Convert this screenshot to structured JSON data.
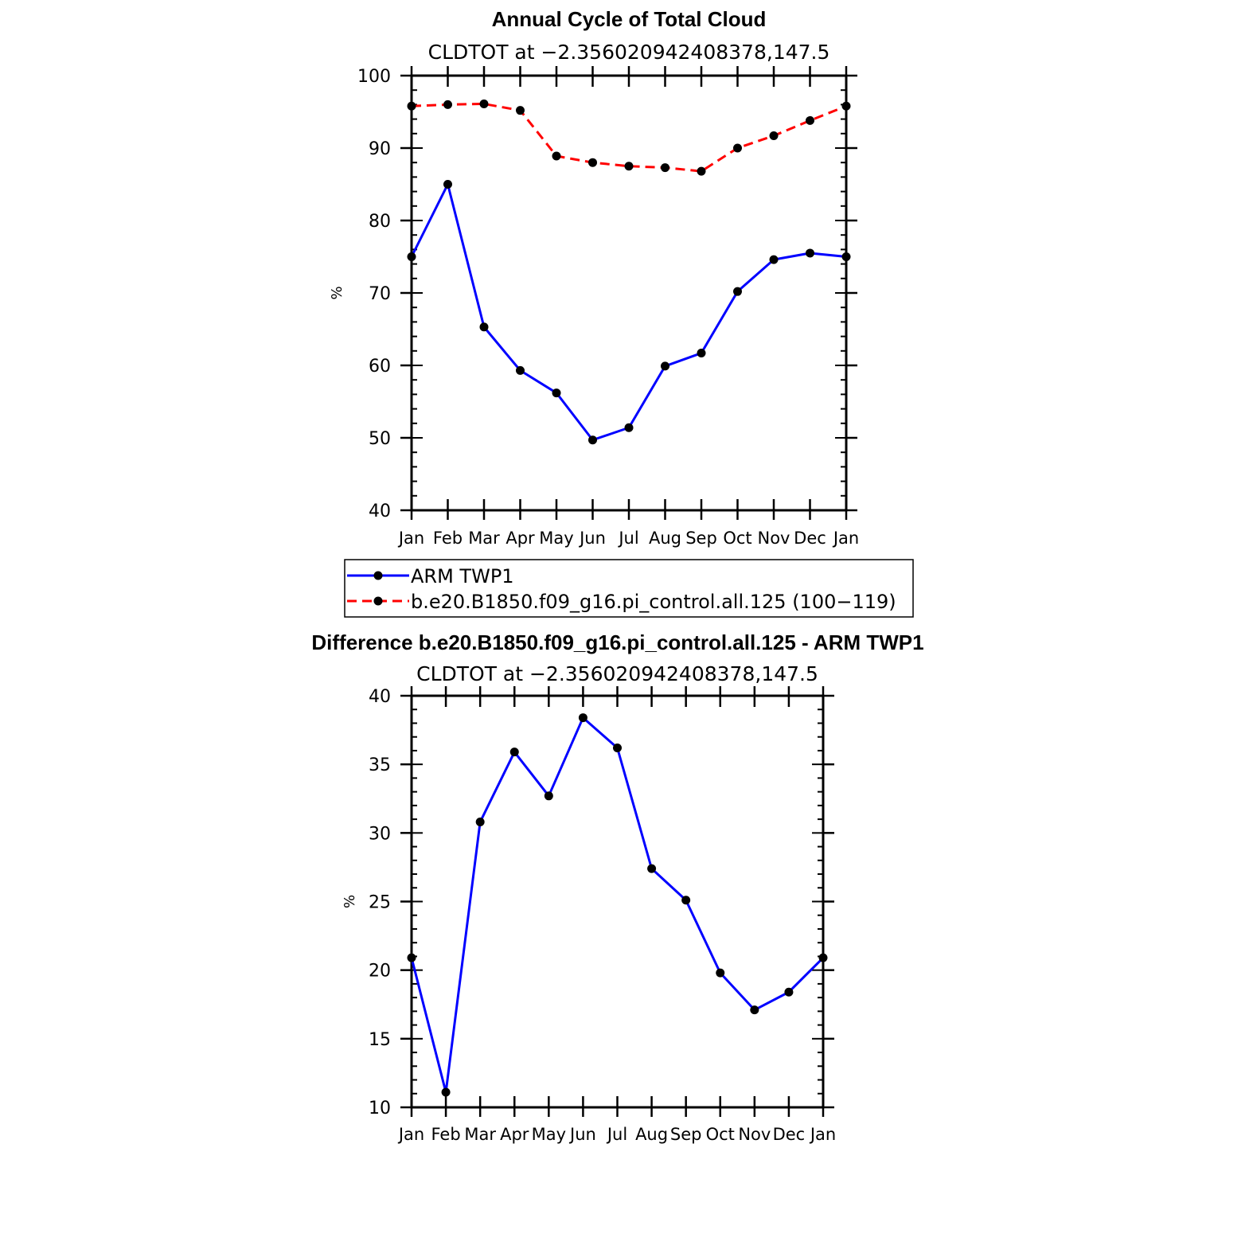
{
  "chart_data": [
    {
      "type": "line",
      "title": "Annual Cycle of Total Cloud",
      "subtitle": "CLDTOT at −2.356020942408378,147.5",
      "ylabel": "%",
      "xlabel": "",
      "categories": [
        "Jan",
        "Feb",
        "Mar",
        "Apr",
        "May",
        "Jun",
        "Jul",
        "Aug",
        "Sep",
        "Oct",
        "Nov",
        "Dec",
        "Jan"
      ],
      "ylim": [
        40,
        100
      ],
      "yticks": [
        "40",
        "50",
        "60",
        "70",
        "80",
        "90",
        "100"
      ],
      "series": [
        {
          "name": "ARM TWP1",
          "color": "#0000ff",
          "dash": "solid",
          "values": [
            75.0,
            85.0,
            65.3,
            59.3,
            56.2,
            49.7,
            51.4,
            59.9,
            61.7,
            70.2,
            74.6,
            75.5,
            75.0
          ]
        },
        {
          "name": "b.e20.B1850.f09_g16.pi_control.all.125 (100−119)",
          "color": "#ff0000",
          "dash": "dashed",
          "values": [
            95.8,
            96.0,
            96.1,
            95.2,
            88.9,
            88.0,
            87.5,
            87.3,
            86.8,
            90.0,
            91.7,
            93.8,
            95.8
          ]
        }
      ],
      "legend_position": "below"
    },
    {
      "type": "line",
      "title": "Difference b.e20.B1850.f09_g16.pi_control.all.125 - ARM TWP1",
      "subtitle": "CLDTOT at −2.356020942408378,147.5",
      "ylabel": "%",
      "xlabel": "",
      "categories": [
        "Jan",
        "Feb",
        "Mar",
        "Apr",
        "May",
        "Jun",
        "Jul",
        "Aug",
        "Sep",
        "Oct",
        "Nov",
        "Dec",
        "Jan"
      ],
      "ylim": [
        10,
        40
      ],
      "yticks": [
        "10",
        "15",
        "20",
        "25",
        "30",
        "35",
        "40"
      ],
      "series": [
        {
          "color": "#0000ff",
          "dash": "solid",
          "values": [
            20.9,
            11.1,
            30.8,
            35.9,
            32.7,
            38.4,
            36.2,
            27.4,
            25.1,
            19.8,
            17.1,
            18.4,
            20.9
          ]
        }
      ]
    }
  ]
}
